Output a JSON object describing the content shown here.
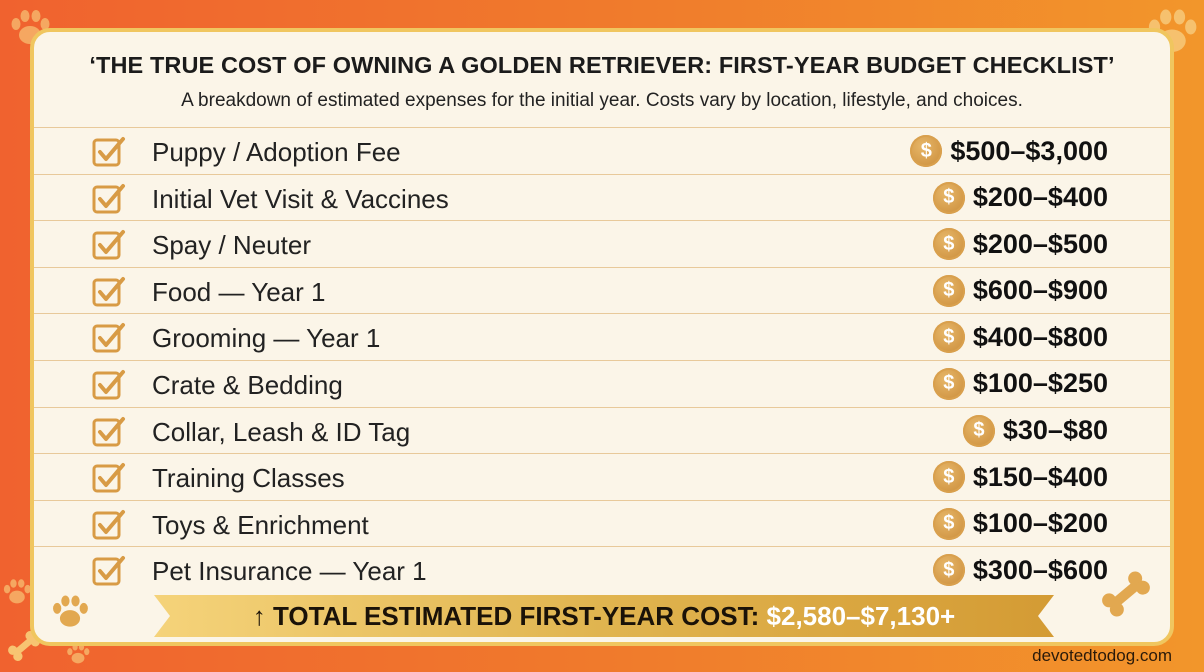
{
  "title": "‘THE TRUE COST OF OWNING A GOLDEN RETRIEVER: FIRST-YEAR BUDGET CHECKLIST’",
  "subtitle": "A breakdown of estimated expenses for the initial year. Costs vary by location, lifestyle, and choices.",
  "coin_symbol": "$",
  "items": [
    {
      "label": "Puppy / Adoption Fee",
      "price": "$500–$3,000"
    },
    {
      "label": "Initial Vet Visit & Vaccines",
      "price": "$200–$400"
    },
    {
      "label": "Spay / Neuter",
      "price": "$200–$500"
    },
    {
      "label": "Food — Year 1",
      "price": "$600–$900"
    },
    {
      "label": "Grooming — Year 1",
      "price": "$400–$800"
    },
    {
      "label": "Crate & Bedding",
      "price": "$100–$250"
    },
    {
      "label": "Collar, Leash & ID Tag",
      "price": "$30–$80"
    },
    {
      "label": "Training Classes",
      "price": "$150–$400"
    },
    {
      "label": "Toys & Enrichment",
      "price": "$100–$200"
    },
    {
      "label": "Pet Insurance — Year 1",
      "price": "$300–$600"
    }
  ],
  "total": {
    "arrow": "↑",
    "label": "TOTAL ESTIMATED FIRST-YEAR COST:",
    "value": "$2,580–$7,130+"
  },
  "footer": "devotedtodog.com",
  "colors": {
    "background_left": "#f0622f",
    "background_right": "#f2962b",
    "card": "#fbf5e8",
    "accent_gold": "#d9a04d",
    "banner_gold": "#e0b44f"
  },
  "icons": [
    "checkbox-checked-icon",
    "dollar-coin-icon",
    "paw-print-icon",
    "bone-icon"
  ]
}
